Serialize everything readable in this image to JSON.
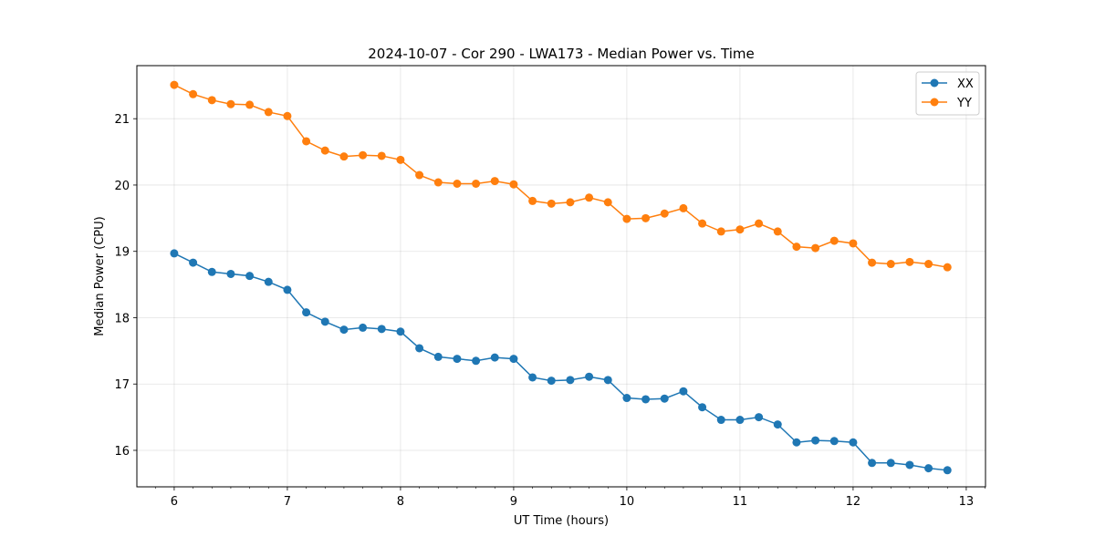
{
  "chart_data": {
    "type": "line",
    "title": "2024-10-07 - Cor 290 - LWA173 - Median Power vs. Time",
    "xlabel": "UT Time (hours)",
    "ylabel": "Median Power (CPU)",
    "xlim": [
      5.67,
      13.17
    ],
    "ylim": [
      15.45,
      21.8
    ],
    "xticks": [
      6,
      7,
      8,
      9,
      10,
      11,
      12,
      13
    ],
    "xtick_labels": [
      "6",
      "7",
      "8",
      "9",
      "10",
      "11",
      "12",
      "13"
    ],
    "yticks": [
      16,
      17,
      18,
      19,
      20,
      21
    ],
    "ytick_labels": [
      "16",
      "17",
      "18",
      "19",
      "20",
      "21"
    ],
    "grid": true,
    "legend_position": "top-right",
    "x": [
      6.0,
      6.1667,
      6.3333,
      6.5,
      6.6667,
      6.8333,
      7.0,
      7.1667,
      7.3333,
      7.5,
      7.6667,
      7.8333,
      8.0,
      8.1667,
      8.3333,
      8.5,
      8.6667,
      8.8333,
      9.0,
      9.1667,
      9.3333,
      9.5,
      9.6667,
      9.8333,
      10.0,
      10.1667,
      10.3333,
      10.5,
      10.6667,
      10.8333,
      11.0,
      11.1667,
      11.3333,
      11.5,
      11.6667,
      11.8333,
      12.0,
      12.1667,
      12.3333,
      12.5,
      12.6667,
      12.8333
    ],
    "series": [
      {
        "name": "XX",
        "color": "#1f77b4",
        "values": [
          18.97,
          18.83,
          18.69,
          18.66,
          18.63,
          18.54,
          18.42,
          18.08,
          17.94,
          17.82,
          17.85,
          17.83,
          17.79,
          17.54,
          17.41,
          17.38,
          17.35,
          17.4,
          17.38,
          17.1,
          17.05,
          17.06,
          17.11,
          17.06,
          16.79,
          16.77,
          16.78,
          16.89,
          16.65,
          16.46,
          16.46,
          16.5,
          16.39,
          16.12,
          16.15,
          16.14,
          16.12,
          15.81,
          15.81,
          15.78,
          15.73,
          15.7
        ]
      },
      {
        "name": "YY",
        "color": "#ff7f0e",
        "values": [
          21.51,
          21.37,
          21.28,
          21.22,
          21.21,
          21.1,
          21.04,
          20.66,
          20.52,
          20.43,
          20.45,
          20.44,
          20.38,
          20.15,
          20.04,
          20.02,
          20.02,
          20.06,
          20.01,
          19.76,
          19.72,
          19.74,
          19.81,
          19.74,
          19.49,
          19.5,
          19.57,
          19.65,
          19.42,
          19.3,
          19.33,
          19.42,
          19.3,
          19.07,
          19.05,
          19.16,
          19.12,
          18.83,
          18.81,
          18.84,
          18.81,
          18.76
        ]
      }
    ]
  }
}
